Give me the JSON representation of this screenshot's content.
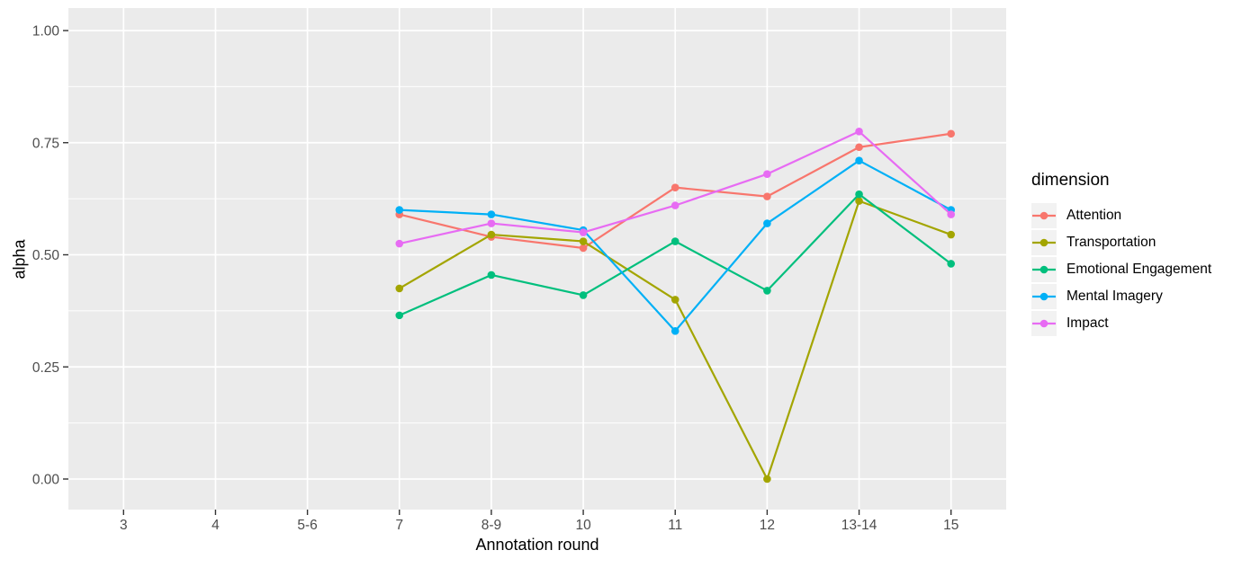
{
  "figure": {
    "background": "#ffffff",
    "panel_background": "#ebebeb",
    "grid_color": "#ffffff",
    "tick_color": "#333333",
    "tick_label_color": "#4d4d4d",
    "legend_key_background": "#f2f2f2"
  },
  "chart_data": {
    "type": "line",
    "title": "",
    "xlabel": "Annotation round",
    "ylabel": "alpha",
    "categories": [
      "3",
      "4",
      "5-6",
      "7",
      "8-9",
      "10",
      "11",
      "12",
      "13-14",
      "15"
    ],
    "y_ticks": [
      "0.00",
      "0.25",
      "0.50",
      "0.75",
      "1.00"
    ],
    "ylim": [
      0,
      1
    ],
    "grid": "white major+minor horizontal lines, white major vertical lines on grey panel",
    "legend_title": "dimension",
    "legend_position": "right",
    "series": [
      {
        "name": "Attention",
        "color": "#F8766D",
        "values": [
          null,
          null,
          null,
          0.59,
          0.54,
          0.515,
          0.65,
          0.63,
          0.74,
          0.77
        ]
      },
      {
        "name": "Transportation",
        "color": "#A3A500",
        "values": [
          null,
          null,
          null,
          0.425,
          0.545,
          0.53,
          0.4,
          0.0,
          0.62,
          0.545
        ]
      },
      {
        "name": "Emotional Engagement",
        "color": "#00BF7D",
        "values": [
          null,
          null,
          null,
          0.365,
          0.455,
          0.41,
          0.53,
          0.42,
          0.635,
          0.48
        ]
      },
      {
        "name": "Mental Imagery",
        "color": "#00B0F6",
        "values": [
          null,
          null,
          null,
          0.6,
          0.59,
          0.555,
          0.33,
          0.57,
          0.71,
          0.6
        ]
      },
      {
        "name": "Impact",
        "color": "#E76BF3",
        "values": [
          null,
          null,
          null,
          0.525,
          0.57,
          0.55,
          0.61,
          0.68,
          0.775,
          0.59
        ]
      }
    ]
  }
}
